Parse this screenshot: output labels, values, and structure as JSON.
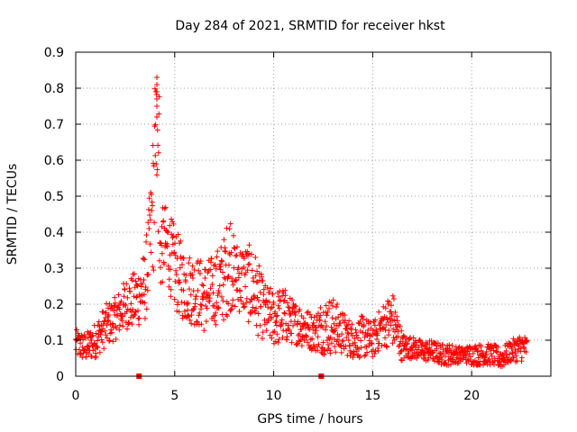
{
  "chart_data": {
    "type": "scatter",
    "title": "Day 284 of 2021, SRMTID for receiver hkst",
    "xlabel": "GPS time / hours",
    "ylabel": "SRMTID / TECUs",
    "xlim": [
      0,
      24
    ],
    "ylim": [
      0,
      0.9
    ],
    "xticks": [
      0,
      5,
      10,
      15,
      20
    ],
    "yticks": [
      0,
      0.1,
      0.2,
      0.3,
      0.4,
      0.5,
      0.6,
      0.7,
      0.8,
      0.9
    ],
    "xtick_labels": [
      "0",
      "5",
      "10",
      "15",
      "20"
    ],
    "ytick_labels": [
      "0",
      "0.1",
      "0.2",
      "0.3",
      "0.4",
      "0.5",
      "0.6",
      "0.7",
      "0.8",
      "0.9"
    ],
    "grid": true,
    "marker": "+",
    "color": "#ff0000",
    "series": [
      {
        "name": "SRMTID",
        "envelope_x": [
          0,
          0.5,
          1,
          1.5,
          2,
          2.5,
          3,
          3.5,
          3.8,
          4.0,
          4.2,
          4.5,
          5,
          5.5,
          6,
          6.5,
          7,
          7.5,
          7.8,
          8,
          8.5,
          9,
          9.5,
          10,
          10.5,
          11,
          11.5,
          12,
          12.5,
          13,
          13.5,
          14,
          14.5,
          15,
          15.5,
          16,
          16.5,
          17,
          17.5,
          18,
          18.5,
          19,
          19.5,
          20,
          20.5,
          21,
          21.5,
          22,
          22.5,
          22.8
        ],
        "center": [
          0.09,
          0.08,
          0.1,
          0.14,
          0.16,
          0.2,
          0.21,
          0.25,
          0.4,
          0.55,
          0.33,
          0.38,
          0.3,
          0.25,
          0.24,
          0.22,
          0.24,
          0.27,
          0.33,
          0.28,
          0.27,
          0.24,
          0.18,
          0.16,
          0.17,
          0.15,
          0.14,
          0.12,
          0.14,
          0.14,
          0.12,
          0.1,
          0.11,
          0.1,
          0.14,
          0.16,
          0.08,
          0.08,
          0.07,
          0.07,
          0.06,
          0.06,
          0.06,
          0.06,
          0.06,
          0.06,
          0.05,
          0.07,
          0.08,
          0.08
        ],
        "spread": [
          0.04,
          0.04,
          0.05,
          0.06,
          0.06,
          0.07,
          0.08,
          0.1,
          0.15,
          0.25,
          0.12,
          0.1,
          0.12,
          0.1,
          0.1,
          0.1,
          0.1,
          0.12,
          0.15,
          0.1,
          0.1,
          0.12,
          0.08,
          0.08,
          0.08,
          0.06,
          0.06,
          0.05,
          0.08,
          0.08,
          0.06,
          0.05,
          0.06,
          0.05,
          0.06,
          0.08,
          0.04,
          0.03,
          0.03,
          0.03,
          0.03,
          0.03,
          0.02,
          0.03,
          0.03,
          0.03,
          0.03,
          0.03,
          0.04,
          0.03
        ]
      }
    ],
    "markers": [
      {
        "name": "gap-marker",
        "x": 3.2,
        "y": 0
      },
      {
        "name": "gap-marker",
        "x": 12.4,
        "y": 0
      }
    ],
    "point_count": 1380,
    "peak": {
      "x": 4.1,
      "y": 0.83
    }
  }
}
